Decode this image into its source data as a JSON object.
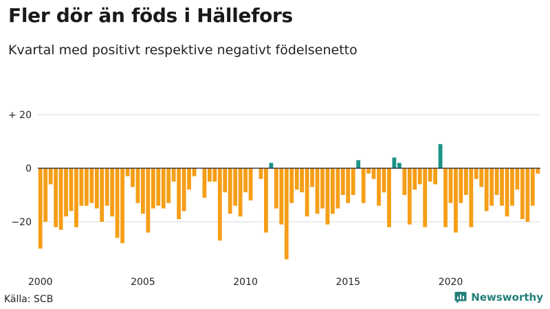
{
  "title": "Fler dör än föds i Hällefors",
  "subtitle": "Kvartal med positivt respektive negativt födelsenetto",
  "source": "Källa: SCB",
  "brand": {
    "name": "Newsworthy",
    "icon": "newsworthy-logo-icon"
  },
  "colors": {
    "negative": "#f59e17",
    "positive": "#1a9488",
    "zero_line": "#1a1a1a",
    "grid": "#d9d9d9",
    "brand": "#25807a"
  },
  "chart_data": {
    "type": "bar",
    "title": "Fler dör än föds i Hällefors",
    "subtitle": "Kvartal med positivt respektive negativt födelsenetto",
    "xlabel": "",
    "ylabel": "",
    "ylim": [
      -35,
      20
    ],
    "y_ticks": [
      {
        "value": 20,
        "label": "+ 20"
      },
      {
        "value": 0,
        "label": "0"
      },
      {
        "value": -20,
        "label": "−20"
      }
    ],
    "x_ticks": [
      "2000",
      "2005",
      "2010",
      "2015",
      "2020"
    ],
    "start_year": 2000,
    "periods_per_year": 4,
    "grid": true,
    "values": [
      -30,
      -20,
      -6,
      -22,
      -23,
      -18,
      -16,
      -22,
      -14,
      -14,
      -13,
      -15,
      -20,
      -14,
      -18,
      -26,
      -28,
      -3,
      -7,
      -13,
      -17,
      -24,
      -15,
      -14,
      -15,
      -13,
      -5,
      -19,
      -16,
      -8,
      -3,
      0,
      -11,
      -5,
      -5,
      -27,
      -9,
      -17,
      -14,
      -18,
      -9,
      -12,
      0,
      -4,
      -24,
      2,
      -15,
      -21,
      -34,
      -13,
      -8,
      -9,
      -18,
      -7,
      -17,
      -15,
      -21,
      -17,
      -15,
      -10,
      -13,
      -10,
      3,
      -13,
      -2,
      -4,
      -14,
      -9,
      -22,
      4,
      2,
      -10,
      -21,
      -8,
      -6,
      -22,
      -5,
      -6,
      9,
      -22,
      -13,
      -24,
      -13,
      -10,
      -22,
      -4,
      -7,
      -16,
      -14,
      -10,
      -14,
      -18,
      -14,
      -8,
      -19,
      -20,
      -14,
      -2
    ]
  }
}
